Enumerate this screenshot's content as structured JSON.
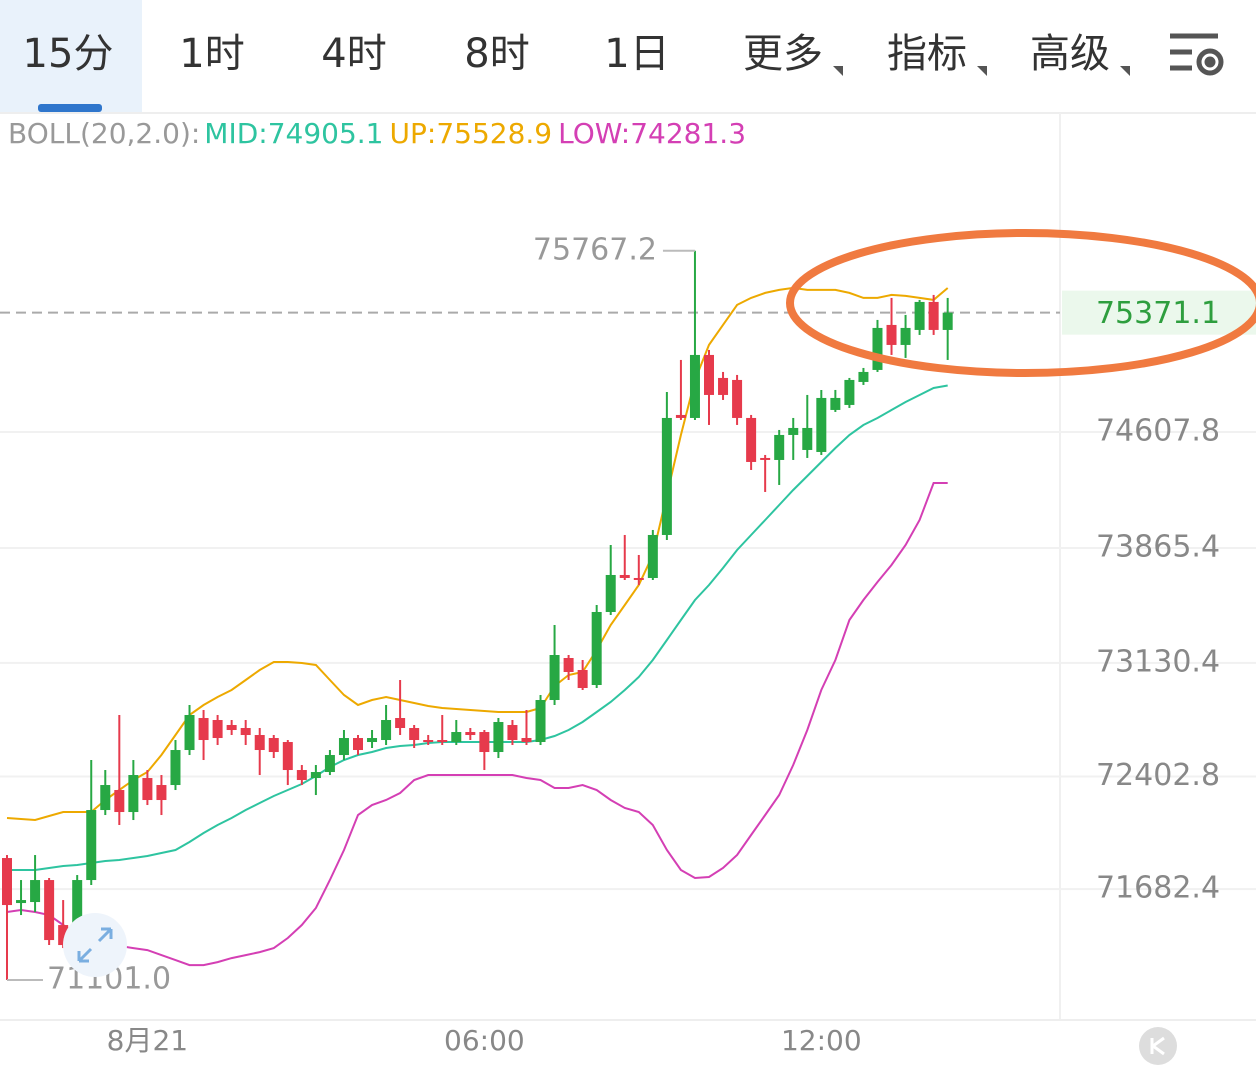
{
  "tabs": {
    "items": [
      "15分",
      "1时",
      "4时",
      "8时",
      "1日",
      "更多",
      "指标",
      "高级"
    ],
    "active": 0
  },
  "indicator": {
    "title": "BOLL(20,2.0):"
  },
  "chart_data": {
    "type": "candlestick",
    "categories": [
      null,
      null,
      null,
      null,
      null,
      null,
      null,
      null,
      null,
      null,
      "8月21",
      null,
      null,
      null,
      null,
      null,
      null,
      null,
      null,
      null,
      null,
      null,
      null,
      null,
      null,
      null,
      null,
      null,
      null,
      null,
      null,
      null,
      null,
      null,
      "06:00",
      null,
      null,
      null,
      null,
      null,
      null,
      null,
      null,
      null,
      null,
      null,
      null,
      null,
      null,
      null,
      null,
      null,
      null,
      null,
      null,
      null,
      null,
      null,
      "12:00",
      null,
      null,
      null,
      null,
      null,
      null,
      null,
      null,
      null
    ],
    "open": [
      71881.4,
      71593.4,
      71599.8,
      71740.6,
      71452.6,
      71452.6,
      71740.6,
      72188.6,
      72316.6,
      72175.8,
      72393.4,
      72348.6,
      72348.6,
      72572.6,
      72777.4,
      72764.6,
      72732.6,
      72713.4,
      72668.6,
      72649.4,
      72623.8,
      72444.6,
      72393.4,
      72431.8,
      72540.6,
      72649.4,
      72623.8,
      72636.6,
      72777.4,
      72713.4,
      72636.6,
      72636.6,
      72623.8,
      72687.8,
      72687.8,
      72559.8,
      72732.6,
      72649.4,
      72623.8,
      72892.6,
      73161.4,
      73084.6,
      72988.6,
      73455.8,
      73692.6,
      73673.4,
      73673.4,
      73948.6,
      74716.6,
      74697.4,
      75100.6,
      74953.4,
      74940.6,
      74697.4,
      74441.4,
      74428.6,
      74588.6,
      74492.6,
      74479.8,
      74748.6,
      74780.6,
      74927.8,
      75004.6,
      75292.6,
      75164.6,
      75260.6,
      75439.8,
      75260.6
    ],
    "high": [
      71900.6,
      71740.6,
      71900.6,
      71753.4,
      71612.6,
      71772.6,
      72508.6,
      72444.6,
      72796.6,
      72508.6,
      72444.6,
      72412.6,
      72636.6,
      72860.6,
      72828.6,
      72796.6,
      72764.6,
      72764.6,
      72713.4,
      72668.6,
      72636.6,
      72476.6,
      72476.6,
      72572.6,
      72700.6,
      72668.6,
      72700.6,
      72860.6,
      73020.6,
      72732.6,
      72668.6,
      72796.6,
      72764.6,
      72713.4,
      72700.6,
      72777.4,
      72764.6,
      72828.6,
      72924.6,
      73372.6,
      73180.6,
      73148.6,
      73500.6,
      73884.6,
      73948.6,
      73820.6,
      73980.6,
      74863.8,
      75068.6,
      75767.2,
      75132.6,
      74991.8,
      74972.6,
      74716.6,
      74460.6,
      74620.6,
      74697.4,
      74844.6,
      74876.6,
      74876.6,
      74953.4,
      75017.4,
      75324.6,
      75465.4,
      75356.6,
      75452.6,
      75484.6,
      75465.4
    ],
    "low": [
      71101.0,
      71516.6,
      71535.8,
      71324.6,
      71305.4,
      71420.6,
      71708.6,
      72156.6,
      72092.6,
      72124.6,
      72220.6,
      72156.6,
      72316.6,
      72540.6,
      72508.6,
      72604.6,
      72668.6,
      72604.6,
      72412.6,
      72521.4,
      72348.6,
      72348.6,
      72284.6,
      72412.6,
      72508.6,
      72540.6,
      72585.4,
      72604.6,
      72668.6,
      72585.4,
      72604.6,
      72604.6,
      72604.6,
      72636.6,
      72444.6,
      72521.4,
      72604.6,
      72604.6,
      72604.6,
      72860.6,
      73020.6,
      72956.6,
      72969.4,
      73436.6,
      73660.6,
      73628.6,
      73660.6,
      73916.6,
      74684.6,
      74684.6,
      74652.6,
      74812.6,
      74652.6,
      74364.6,
      74223.8,
      74268.6,
      74428.6,
      74441.4,
      74460.6,
      74735.8,
      74761.4,
      74908.6,
      74991.8,
      75100.6,
      75081.4,
      75228.6,
      75228.6,
      75068.6
    ],
    "close": [
      71580.6,
      71612.6,
      71740.6,
      71356.6,
      71324.6,
      71740.6,
      72188.6,
      72348.6,
      72175.8,
      72412.6,
      72252.6,
      72252.6,
      72572.6,
      72796.6,
      72636.6,
      72649.4,
      72700.6,
      72668.6,
      72572.6,
      72559.8,
      72444.6,
      72380.6,
      72431.8,
      72540.6,
      72649.4,
      72572.6,
      72649.4,
      72764.6,
      72713.4,
      72636.6,
      72623.8,
      72623.8,
      72687.8,
      72668.6,
      72559.8,
      72751.8,
      72636.6,
      72623.8,
      72892.6,
      73180.6,
      73071.8,
      72969.4,
      73455.8,
      73692.6,
      73673.4,
      73660.6,
      73948.6,
      74697.4,
      74697.4,
      75100.6,
      74844.6,
      74844.6,
      74697.4,
      74415.8,
      74428.6,
      74588.6,
      74633.4,
      74633.4,
      74825.4,
      74825.4,
      74940.6,
      74991.8,
      75273.4,
      75164.6,
      75273.4,
      75439.8,
      75260.6,
      75371.1
    ],
    "up_color": "#27a844",
    "down_color": "#e63a4c",
    "series": [
      {
        "name": "MID:74905.1",
        "color": "#2ec4a0",
        "values": [
          71804.6,
          71804.6,
          71804.6,
          71817.4,
          71830.2,
          71836.6,
          71849.4,
          71862.2,
          71868.6,
          71881.4,
          71894.2,
          71913.4,
          71932.6,
          71983.8,
          72041.4,
          72092.6,
          72137.4,
          72188.6,
          72233.4,
          72278.2,
          72316.6,
          72355.0,
          72406.2,
          72463.8,
          72508.6,
          72540.6,
          72559.8,
          72585.4,
          72598.2,
          72604.6,
          72617.4,
          72623.8,
          72623.8,
          72623.8,
          72623.8,
          72623.8,
          72623.8,
          72623.8,
          72636.6,
          72662.2,
          72700.6,
          72751.8,
          72815.8,
          72879.8,
          72956.6,
          73039.8,
          73148.6,
          73276.6,
          73404.6,
          73532.6,
          73628.6,
          73737.4,
          73852.6,
          73948.6,
          74044.6,
          74140.6,
          74236.6,
          74326.2,
          74415.8,
          74505.4,
          74588.6,
          74652.6,
          74697.4,
          74748.6,
          74799.8,
          74844.6,
          74889.4,
          74905.1
        ]
      },
      {
        "name": "UP:75528.9",
        "color": "#eda900",
        "values": [
          72137.4,
          72131.0,
          72124.6,
          72150.2,
          72175.8,
          72175.8,
          72175.8,
          72252.6,
          72316.6,
          72380.6,
          72431.8,
          72540.6,
          72668.6,
          72796.6,
          72860.6,
          72911.8,
          72956.6,
          73020.6,
          73084.6,
          73135.8,
          73135.8,
          73129.4,
          73116.6,
          73020.6,
          72924.6,
          72860.6,
          72892.6,
          72911.8,
          72892.6,
          72873.4,
          72854.2,
          72841.4,
          72835.0,
          72828.6,
          72822.2,
          72815.8,
          72815.8,
          72815.8,
          72841.4,
          72982.2,
          73052.6,
          73071.8,
          73212.6,
          73372.6,
          73500.6,
          73628.6,
          73820.6,
          74204.6,
          74588.6,
          74940.6,
          75164.6,
          75292.6,
          75420.6,
          75465.4,
          75497.4,
          75516.6,
          75529.4,
          75516.6,
          75516.6,
          75516.6,
          75497.4,
          75465.4,
          75465.4,
          75484.6,
          75478.2,
          75465.4,
          75452.6,
          75528.9
        ]
      },
      {
        "name": "LOW:74281.3",
        "color": "#d43fb4",
        "values": [
          71535.8,
          71548.6,
          71535.8,
          71516.6,
          71452.6,
          71388.6,
          71356.6,
          71324.6,
          71318.2,
          71305.4,
          71292.6,
          71260.6,
          71228.6,
          71196.6,
          71196.6,
          71215.8,
          71241.4,
          71260.6,
          71279.8,
          71305.4,
          71369.4,
          71452.6,
          71561.4,
          71740.6,
          71932.6,
          72156.6,
          72220.6,
          72252.6,
          72297.4,
          72380.6,
          72412.6,
          72412.6,
          72412.6,
          72412.6,
          72412.6,
          72412.6,
          72412.6,
          72393.4,
          72380.6,
          72329.4,
          72329.4,
          72348.6,
          72316.6,
          72252.6,
          72201.4,
          72175.8,
          72092.6,
          71932.6,
          71804.6,
          71753.4,
          71759.8,
          71817.4,
          71900.6,
          72028.6,
          72156.6,
          72284.6,
          72476.6,
          72700.6,
          72956.6,
          73148.6,
          73404.6,
          73532.6,
          73647.8,
          73756.6,
          73884.6,
          74044.6,
          74281.4,
          74281.3
        ]
      }
    ],
    "ylim": [
      70845,
      76636
    ],
    "yticks": [
      71682.4,
      72402.8,
      73130.4,
      73865.4,
      74607.8
    ],
    "grid": true,
    "high_label": 75767.2,
    "low_label": {
      "value": 71101.0,
      "label": "71101.0"
    },
    "last_price": 75371.1
  }
}
